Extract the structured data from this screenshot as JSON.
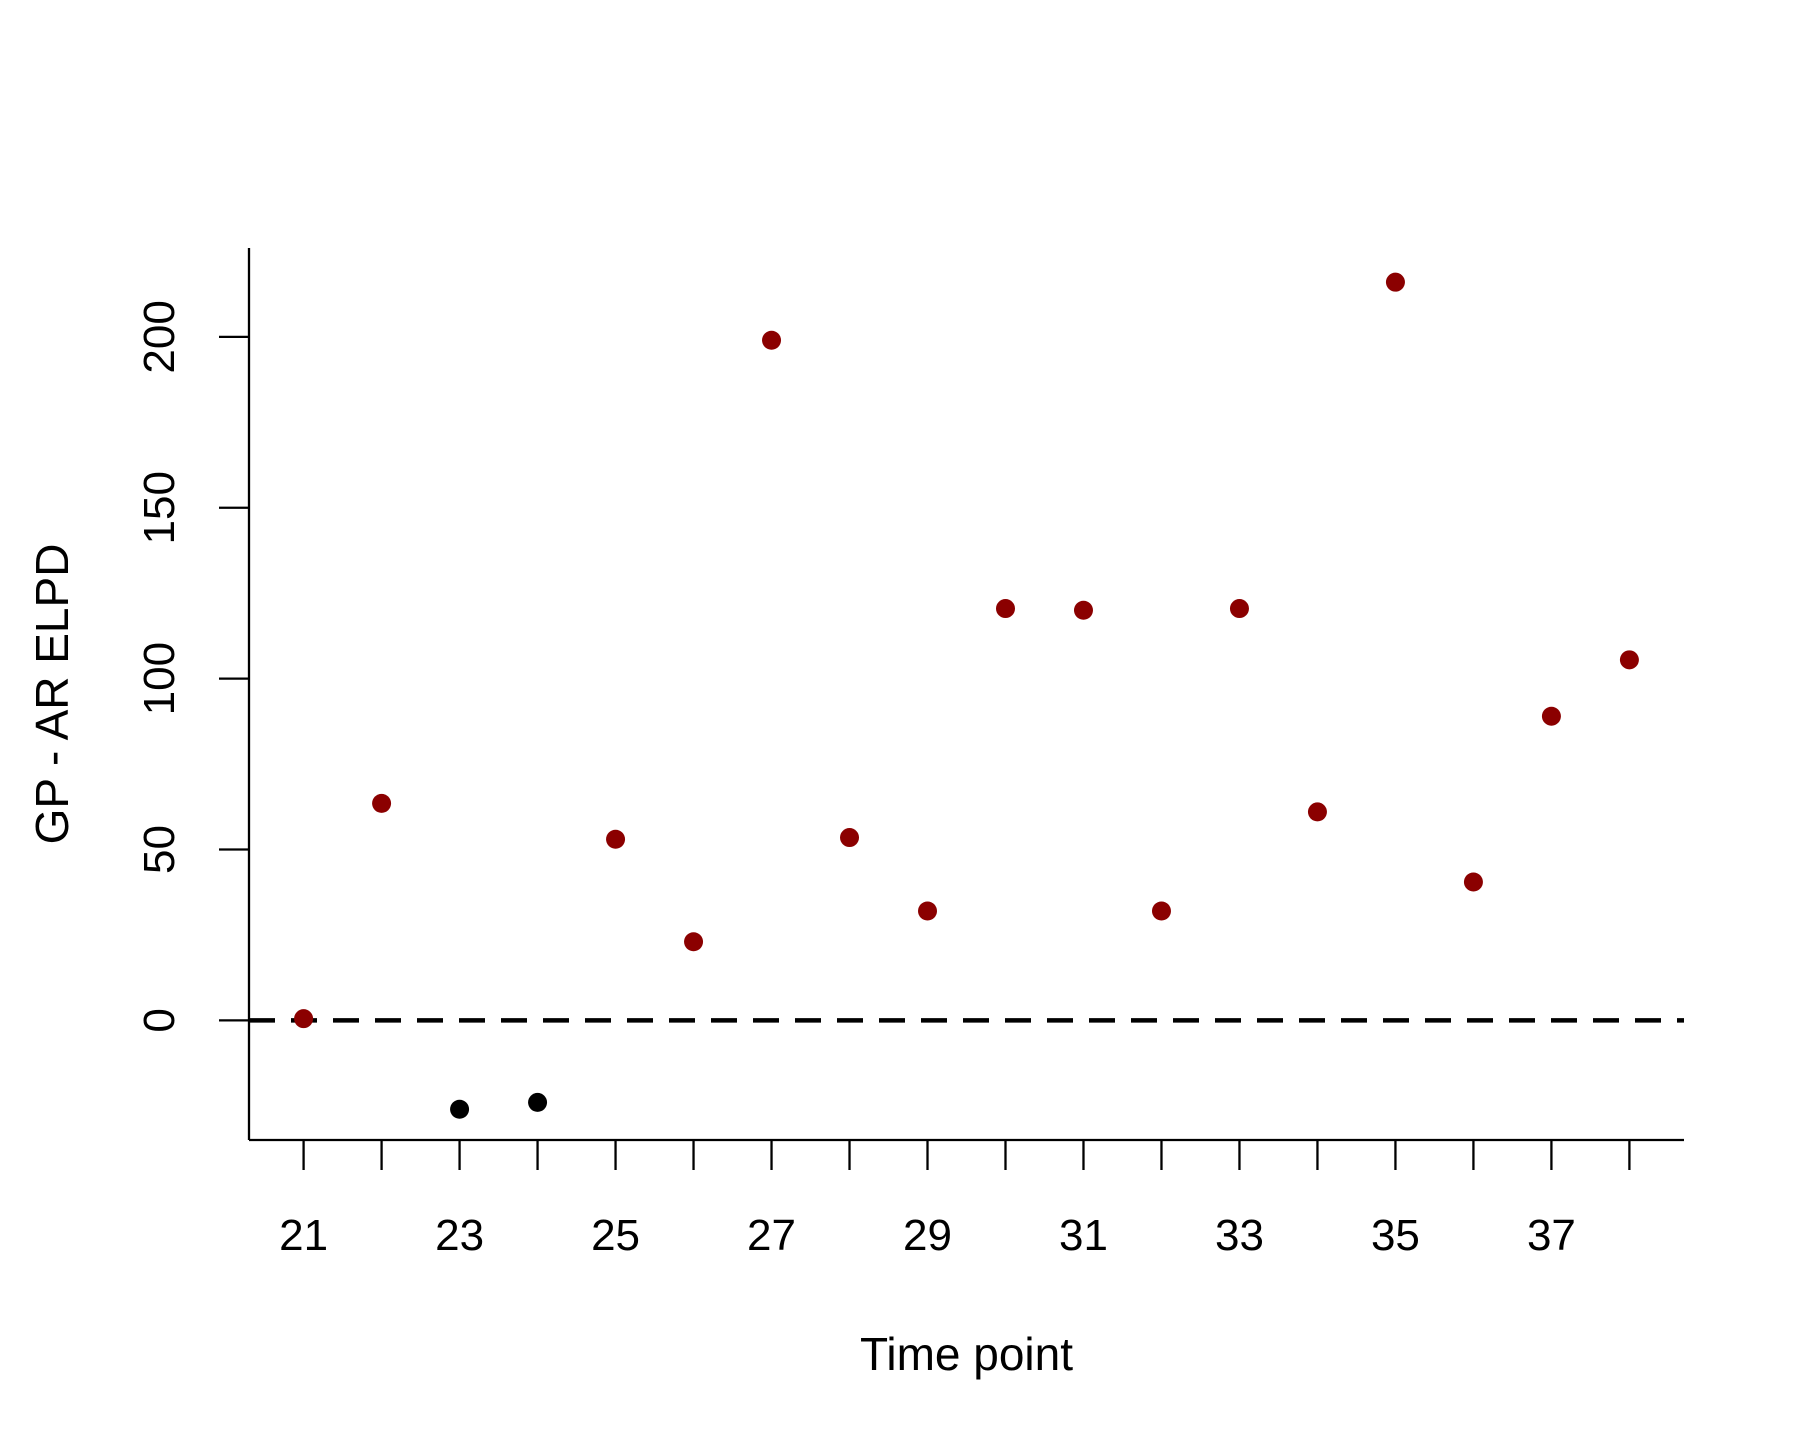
{
  "chart_data": {
    "type": "scatter",
    "title": "",
    "xlabel": "Time point",
    "ylabel": "GP - AR ELPD",
    "xlim": [
      20.3,
      38.7
    ],
    "ylim": [
      -35,
      226
    ],
    "xticks": [
      21,
      22,
      23,
      24,
      25,
      26,
      27,
      28,
      29,
      30,
      31,
      32,
      33,
      34,
      35,
      36,
      37,
      38
    ],
    "xtick_labels": [
      "21",
      "",
      "23",
      "",
      "25",
      "",
      "27",
      "",
      "29",
      "",
      "31",
      "",
      "33",
      "",
      "35",
      "",
      "37",
      ""
    ],
    "yticks": [
      0,
      50,
      100,
      150,
      200
    ],
    "ytick_labels": [
      "0",
      "50",
      "100",
      "150",
      "200"
    ],
    "reference_line": {
      "y": 0,
      "style": "dashed"
    },
    "grid": false,
    "legend": "none",
    "colors": {
      "positive": "#8b0000",
      "negative": "#000000"
    },
    "points": [
      {
        "x": 21,
        "y": 0.5
      },
      {
        "x": 22,
        "y": 63.5
      },
      {
        "x": 23,
        "y": -26
      },
      {
        "x": 24,
        "y": -24
      },
      {
        "x": 25,
        "y": 53
      },
      {
        "x": 26,
        "y": 23
      },
      {
        "x": 27,
        "y": 199
      },
      {
        "x": 28,
        "y": 53.5
      },
      {
        "x": 29,
        "y": 32
      },
      {
        "x": 30,
        "y": 120.5
      },
      {
        "x": 31,
        "y": 120
      },
      {
        "x": 32,
        "y": 32
      },
      {
        "x": 33,
        "y": 120.5
      },
      {
        "x": 34,
        "y": 61
      },
      {
        "x": 35,
        "y": 216
      },
      {
        "x": 36,
        "y": 40.5
      },
      {
        "x": 37,
        "y": 89
      },
      {
        "x": 38,
        "y": 105.5
      }
    ]
  }
}
